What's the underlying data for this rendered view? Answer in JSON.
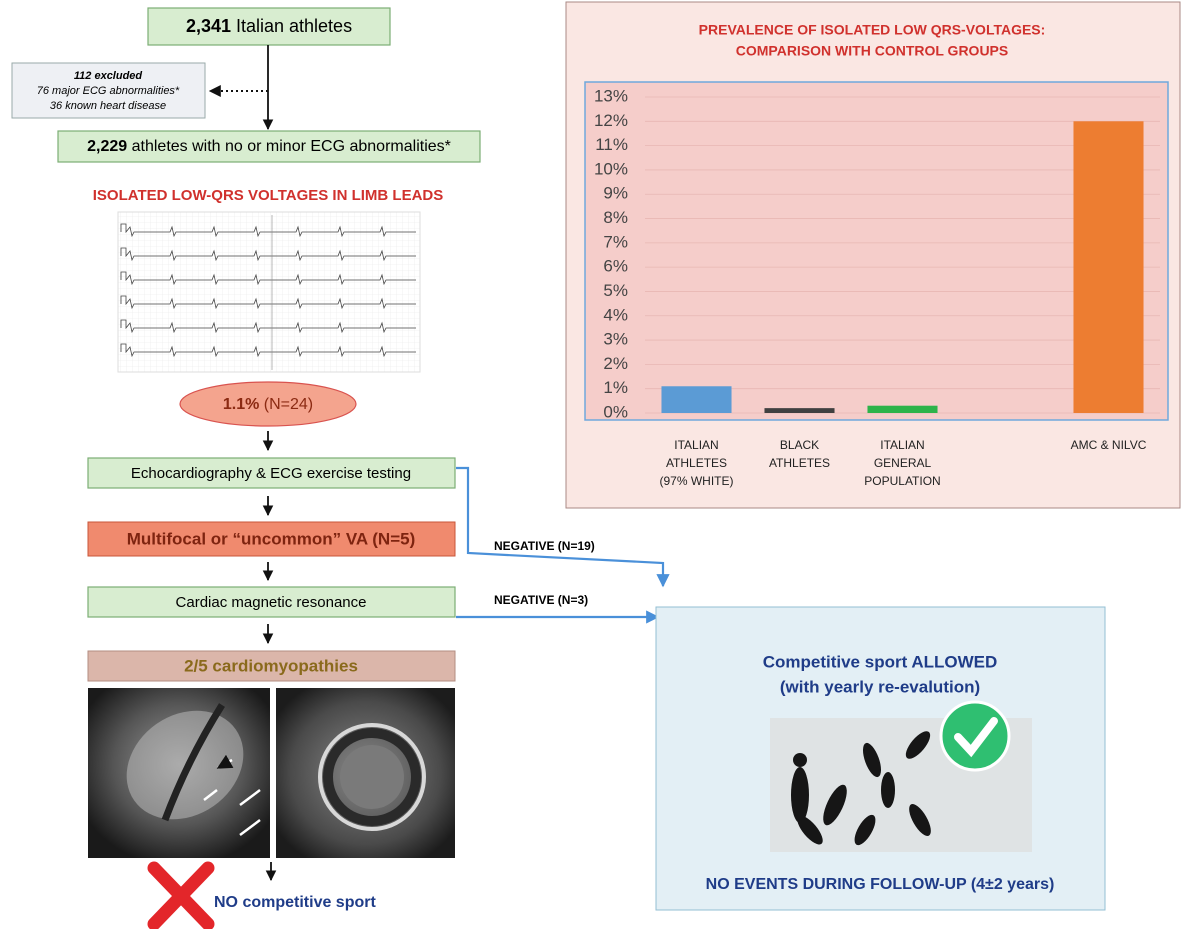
{
  "flowchart": {
    "start": {
      "number": "2,341",
      "text": " Italian athletes"
    },
    "excluded": {
      "title": "112 excluded",
      "lines": [
        "76 major ECG abnormalities*",
        "36 known heart disease"
      ]
    },
    "eligible": {
      "number": "2,229",
      "text": " athletes with no or minor ECG abnormalities*"
    },
    "finding": "ISOLATED LOW-QRS VOLTAGES IN LIMB LEADS",
    "prevalence": {
      "number": "1.1%",
      "text": " (N=24)"
    },
    "step1": "Echocardiography & ECG exercise testing",
    "step2": "Multifocal or “uncommon” VA (N=5)",
    "step3": "Cardiac magnetic resonance",
    "result": "2/5 cardiomyopathies",
    "outcome_negative": "NO competitive sport",
    "negative_1": "NEGATIVE (N=19)",
    "negative_2": "NEGATIVE (N=3)",
    "allowed": {
      "title": "Competitive sport ALLOWED",
      "subtitle": "(with yearly re-evalution)",
      "footer": "NO EVENTS DURING FOLLOW-UP (4±2 years)"
    }
  },
  "chart_data": {
    "type": "bar",
    "title": "PREVALENCE OF ISOLATED LOW QRS-VOLTAGES:",
    "subtitle": "COMPARISON WITH CONTROL GROUPS",
    "categories": [
      "ITALIAN\nATHLETES\n(97% WHITE)",
      "BLACK\nATHLETES",
      "ITALIAN\nGENERAL\nPOPULATION",
      null,
      "AMC & NILVC"
    ],
    "values": [
      1.1,
      0.2,
      0.3,
      null,
      12
    ],
    "colors": [
      "#5b9bd5",
      "#404040",
      "#2db34a",
      null,
      "#ed7d31"
    ],
    "ylim": [
      0,
      13
    ],
    "yticks": [
      {
        "value": 0,
        "label": "0%"
      },
      {
        "value": 1,
        "label": "1%"
      },
      {
        "value": 2,
        "label": "2%"
      },
      {
        "value": 3,
        "label": "3%"
      },
      {
        "value": 4,
        "label": "4%"
      },
      {
        "value": 5,
        "label": "5%"
      },
      {
        "value": 6,
        "label": "6%"
      },
      {
        "value": 7,
        "label": "7%"
      },
      {
        "value": 8,
        "label": "8%"
      },
      {
        "value": 9,
        "label": "9%"
      },
      {
        "value": 10,
        "label": "10%"
      },
      {
        "value": 11,
        "label": "11%"
      },
      {
        "value": 12,
        "label": "12%"
      },
      {
        "value": 13,
        "label": "13%"
      }
    ],
    "grid": true
  }
}
